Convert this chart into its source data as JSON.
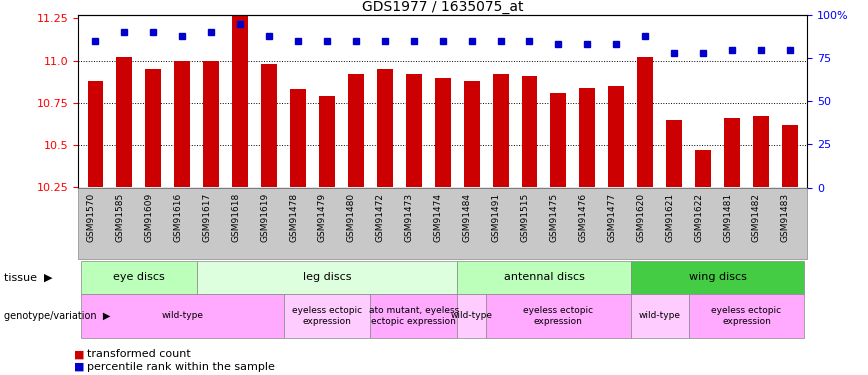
{
  "title": "GDS1977 / 1635075_at",
  "samples": [
    "GSM91570",
    "GSM91585",
    "GSM91609",
    "GSM91616",
    "GSM91617",
    "GSM91618",
    "GSM91619",
    "GSM91478",
    "GSM91479",
    "GSM91480",
    "GSM91472",
    "GSM91473",
    "GSM91474",
    "GSM91484",
    "GSM91491",
    "GSM91515",
    "GSM91475",
    "GSM91476",
    "GSM91477",
    "GSM91620",
    "GSM91621",
    "GSM91622",
    "GSM91481",
    "GSM91482",
    "GSM91483"
  ],
  "bar_values": [
    10.88,
    11.02,
    10.95,
    11.0,
    11.0,
    11.27,
    10.98,
    10.83,
    10.79,
    10.92,
    10.95,
    10.92,
    10.9,
    10.88,
    10.92,
    10.91,
    10.81,
    10.84,
    10.85,
    11.02,
    10.65,
    10.47,
    10.66,
    10.67,
    10.62
  ],
  "percentile_values": [
    85,
    90,
    90,
    88,
    90,
    95,
    88,
    85,
    85,
    85,
    85,
    85,
    85,
    85,
    85,
    85,
    83,
    83,
    83,
    88,
    78,
    78,
    80,
    80,
    80
  ],
  "ymin": 10.25,
  "ymax": 11.27,
  "yticks": [
    10.25,
    10.5,
    10.75,
    11.0,
    11.25
  ],
  "yright_ticks": [
    0,
    25,
    50,
    75,
    100
  ],
  "yright_labels": [
    "0",
    "25",
    "50",
    "75",
    "100%"
  ],
  "tissue_groups": [
    {
      "label": "eye discs",
      "start": 0,
      "end": 4,
      "color": "#bbffbb"
    },
    {
      "label": "leg discs",
      "start": 4,
      "end": 13,
      "color": "#ddffdd"
    },
    {
      "label": "antennal discs",
      "start": 13,
      "end": 19,
      "color": "#bbffbb"
    },
    {
      "label": "wing discs",
      "start": 19,
      "end": 25,
      "color": "#44cc44"
    }
  ],
  "genotype_groups": [
    {
      "label": "wild-type",
      "start": 0,
      "end": 7,
      "color": "#ffaaff"
    },
    {
      "label": "eyeless ectopic\nexpression",
      "start": 7,
      "end": 10,
      "color": "#ffccff"
    },
    {
      "label": "ato mutant, eyeless\nectopic expression",
      "start": 10,
      "end": 13,
      "color": "#ffaaff"
    },
    {
      "label": "wild-type",
      "start": 13,
      "end": 14,
      "color": "#ffccff"
    },
    {
      "label": "eyeless ectopic\nexpression",
      "start": 14,
      "end": 19,
      "color": "#ffaaff"
    },
    {
      "label": "wild-type",
      "start": 19,
      "end": 21,
      "color": "#ffccff"
    },
    {
      "label": "eyeless ectopic\nexpression",
      "start": 21,
      "end": 25,
      "color": "#ffaaff"
    }
  ],
  "bar_color": "#cc0000",
  "dot_color": "#0000cc",
  "bar_width": 0.55
}
